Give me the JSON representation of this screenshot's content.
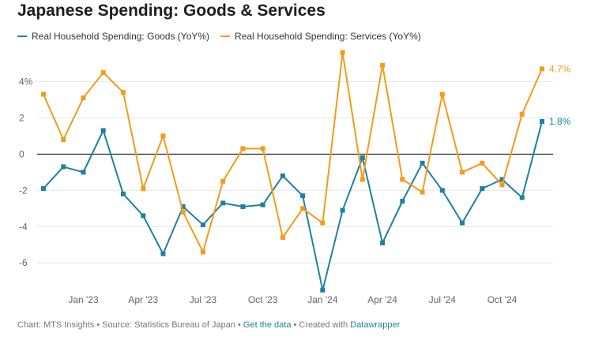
{
  "title": "Japanese Spending: Goods & Services",
  "legend": [
    {
      "label": "Real Household Spending: Goods (YoY%)",
      "color": "#1d81a2"
    },
    {
      "label": "Real Household Spending: Services (YoY%)",
      "color": "#f29c1a"
    }
  ],
  "footer": {
    "chart_by": "Chart: MTS Insights",
    "source": "Source: Statistics Bureau of Japan",
    "get_data": "Get the data",
    "created_with": "Created with",
    "tool": "Datawrapper",
    "sep": " • "
  },
  "chart_data": {
    "type": "line",
    "title": "Japanese Spending: Goods & Services",
    "x": [
      "2022-11",
      "2022-12",
      "2023-01",
      "2023-02",
      "2023-03",
      "2023-04",
      "2023-05",
      "2023-06",
      "2023-07",
      "2023-08",
      "2023-09",
      "2023-10",
      "2023-11",
      "2023-12",
      "2024-01",
      "2024-02",
      "2024-03",
      "2024-04",
      "2024-05",
      "2024-06",
      "2024-07",
      "2024-08",
      "2024-09",
      "2024-10",
      "2024-11",
      "2024-12"
    ],
    "x_ticks": [
      "Jan '23",
      "Apr '23",
      "Jul '23",
      "Oct '23",
      "Jan '24",
      "Apr '24",
      "Jul '24",
      "Oct '24"
    ],
    "x_tick_positions": [
      "2023-01",
      "2023-04",
      "2023-07",
      "2023-10",
      "2024-01",
      "2024-04",
      "2024-07",
      "2024-10"
    ],
    "y_ticks": [
      4,
      2,
      0,
      -2,
      -4,
      -6
    ],
    "y_tick_labels": [
      "4%",
      "2",
      "0",
      "-2",
      "-4",
      "-6"
    ],
    "ylim": [
      -7.6,
      5.8
    ],
    "grid": true,
    "legend_position": "top-left",
    "series": [
      {
        "name": "Real Household Spending: Goods (YoY%)",
        "color": "#1d81a2",
        "values": [
          -1.9,
          -0.7,
          -1.0,
          1.3,
          -2.2,
          -3.4,
          -5.5,
          -2.9,
          -3.9,
          -2.7,
          -2.9,
          -2.8,
          -1.2,
          -2.3,
          -7.5,
          -3.1,
          -0.2,
          -4.9,
          -2.6,
          -0.5,
          -2.0,
          -3.8,
          -1.9,
          -1.4,
          -2.4,
          1.8
        ],
        "end_label": "1.8%"
      },
      {
        "name": "Real Household Spending: Services (YoY%)",
        "color": "#f29c1a",
        "values": [
          3.3,
          0.8,
          3.1,
          4.5,
          3.4,
          -1.9,
          1.0,
          -3.2,
          -5.4,
          -1.5,
          0.3,
          0.3,
          -4.6,
          -3.0,
          -3.8,
          5.6,
          -1.4,
          4.9,
          -1.4,
          -2.1,
          3.3,
          -1.0,
          -0.5,
          -1.7,
          2.2,
          4.7
        ],
        "end_label": "4.7%"
      }
    ]
  }
}
